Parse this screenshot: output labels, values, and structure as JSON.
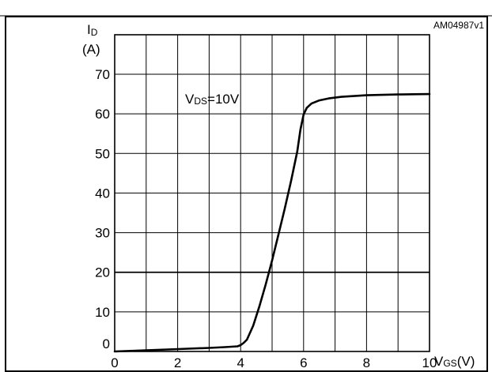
{
  "chart_data": {
    "type": "line",
    "figure_id": "AM04987v1",
    "annotation": {
      "main": "V",
      "sub": "DS",
      "rest": "=10V"
    },
    "ylabel": {
      "main": "I",
      "sub": "D",
      "unit": "(A)"
    },
    "xlabel": {
      "main": "V",
      "sub": "GS",
      "unit": "(V)"
    },
    "xlim": [
      0,
      10
    ],
    "ylim": [
      0,
      70
    ],
    "x_ticks": [
      "0",
      "2",
      "4",
      "6",
      "8",
      "10"
    ],
    "y_ticks": [
      "0",
      "10",
      "20",
      "30",
      "40",
      "50",
      "60",
      "70"
    ],
    "grid": true,
    "series": [
      {
        "x": [
          0,
          1,
          2,
          3,
          3.5,
          3.9,
          4.0,
          4.1,
          4.2,
          4.4,
          4.6,
          4.8,
          5.0,
          5.2,
          5.4,
          5.6,
          5.8,
          5.9,
          6.0,
          6.1,
          6.25,
          6.5,
          6.8,
          7.2,
          7.6,
          8.0,
          8.5,
          9.0,
          9.5,
          10.0
        ],
        "y": [
          0,
          0.3,
          0.6,
          0.9,
          1.1,
          1.3,
          1.6,
          2.2,
          3.0,
          6.5,
          11.5,
          17.0,
          23.0,
          29.5,
          36.0,
          43.0,
          50.5,
          56.0,
          59.8,
          61.5,
          62.6,
          63.4,
          63.9,
          64.3,
          64.5,
          64.7,
          64.8,
          64.9,
          64.95,
          65.0
        ]
      }
    ]
  }
}
